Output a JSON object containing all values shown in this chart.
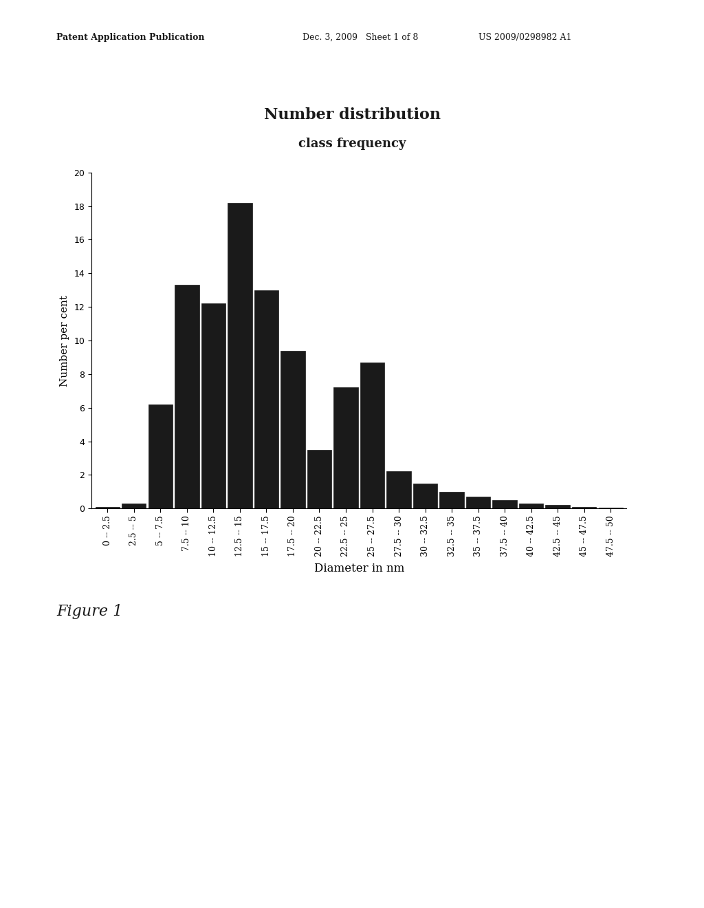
{
  "title": "Number distribution",
  "subtitle": "class frequency",
  "xlabel": "Diameter in nm",
  "ylabel": "Number per cent",
  "bar_color": "#1a1a1a",
  "background_color": "#ffffff",
  "ylim": [
    0,
    20
  ],
  "yticks": [
    0,
    2,
    4,
    6,
    8,
    10,
    12,
    14,
    16,
    18,
    20
  ],
  "categories": [
    "0 -- 2.5",
    "2.5 -- 5",
    "5 -- 7.5",
    "7.5 -- 10",
    "10 -- 12.5",
    "12.5 -- 15",
    "15 -- 17.5",
    "17.5 -- 20",
    "20 -- 22.5",
    "22.5 -- 25",
    "25 -- 27.5",
    "27.5 -- 30",
    "30 -- 32.5",
    "32.5 -- 35",
    "35 -- 37.5",
    "37.5 -- 40",
    "40 -- 42.5",
    "42.5 -- 45",
    "45 -- 47.5",
    "47.5 -- 50"
  ],
  "values": [
    0.1,
    0.3,
    6.2,
    13.3,
    12.2,
    18.2,
    13.0,
    9.4,
    3.5,
    7.2,
    8.7,
    2.2,
    1.5,
    1.0,
    0.7,
    0.5,
    0.3,
    0.2,
    0.1,
    0.05
  ],
  "title_fontsize": 16,
  "subtitle_fontsize": 13,
  "xlabel_fontsize": 12,
  "ylabel_fontsize": 11,
  "tick_fontsize": 9,
  "header_left": "Patent Application Publication",
  "header_mid": "Dec. 3, 2009   Sheet 1 of 8",
  "header_right": "US 2009/0298982 A1",
  "figure_label": "Figure 1"
}
